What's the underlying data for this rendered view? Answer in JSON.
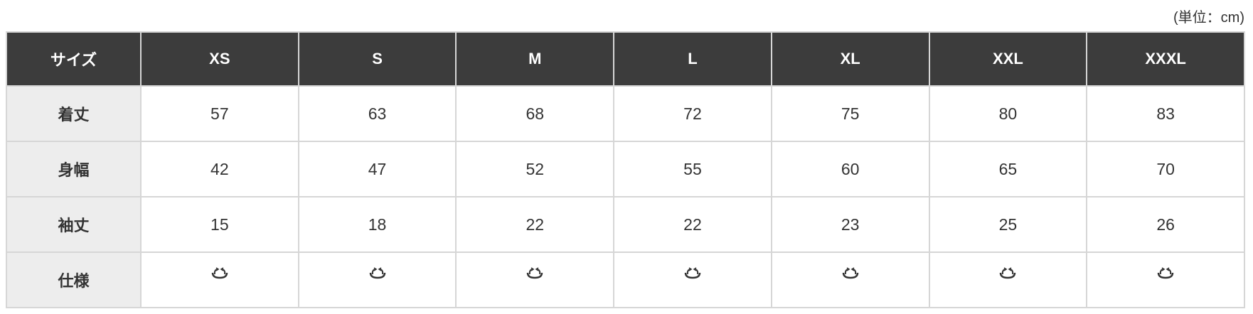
{
  "unit_note": "(単位：cm)",
  "table": {
    "header": [
      "サイズ",
      "XS",
      "S",
      "M",
      "L",
      "XL",
      "XXL",
      "XXXL"
    ],
    "rows": [
      {
        "label": "着丈",
        "values": [
          "57",
          "63",
          "68",
          "72",
          "75",
          "80",
          "83"
        ]
      },
      {
        "label": "身幅",
        "values": [
          "42",
          "47",
          "52",
          "55",
          "60",
          "65",
          "70"
        ]
      },
      {
        "label": "袖丈",
        "values": [
          "15",
          "18",
          "22",
          "22",
          "23",
          "25",
          "26"
        ]
      }
    ],
    "spec_row": {
      "label": "仕様",
      "icon": "spec-glyph",
      "count": 7
    }
  },
  "colors": {
    "header_bg": "#3c3c3c",
    "label_bg": "#ededed",
    "border": "#d6d6d6"
  }
}
